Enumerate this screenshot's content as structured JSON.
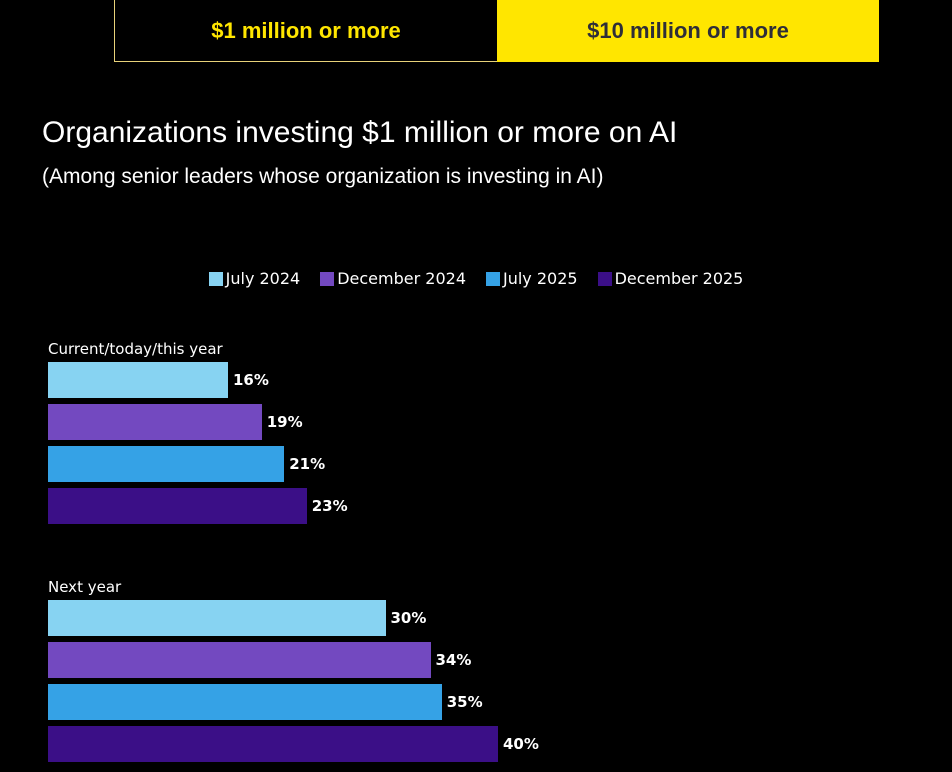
{
  "tabs": [
    {
      "label": "$1 million or more",
      "active": false
    },
    {
      "label": "$10 million or more",
      "active": true
    }
  ],
  "chart_data": {
    "type": "bar",
    "orientation": "horizontal",
    "title": "Organizations investing $1 million or more on AI",
    "subtitle": "(Among senior leaders whose organization is investing in AI)",
    "categories": [
      "Current/today/this year",
      "Next year"
    ],
    "series": [
      {
        "name": "July 2024",
        "color": "#87d3f2",
        "values": [
          16,
          30
        ],
        "labels": [
          "16%",
          "30%"
        ]
      },
      {
        "name": "December 2024",
        "color": "#7349c0",
        "values": [
          19,
          34
        ],
        "labels": [
          "19%",
          "34%"
        ]
      },
      {
        "name": "July 2025",
        "color": "#35a2e6",
        "values": [
          21,
          35
        ],
        "labels": [
          "21%",
          "35%"
        ]
      },
      {
        "name": "December 2025",
        "color": "#3b0f87",
        "values": [
          23,
          40
        ],
        "labels": [
          "23%",
          "40%"
        ]
      }
    ],
    "legend": "top-center",
    "grid": false
  }
}
